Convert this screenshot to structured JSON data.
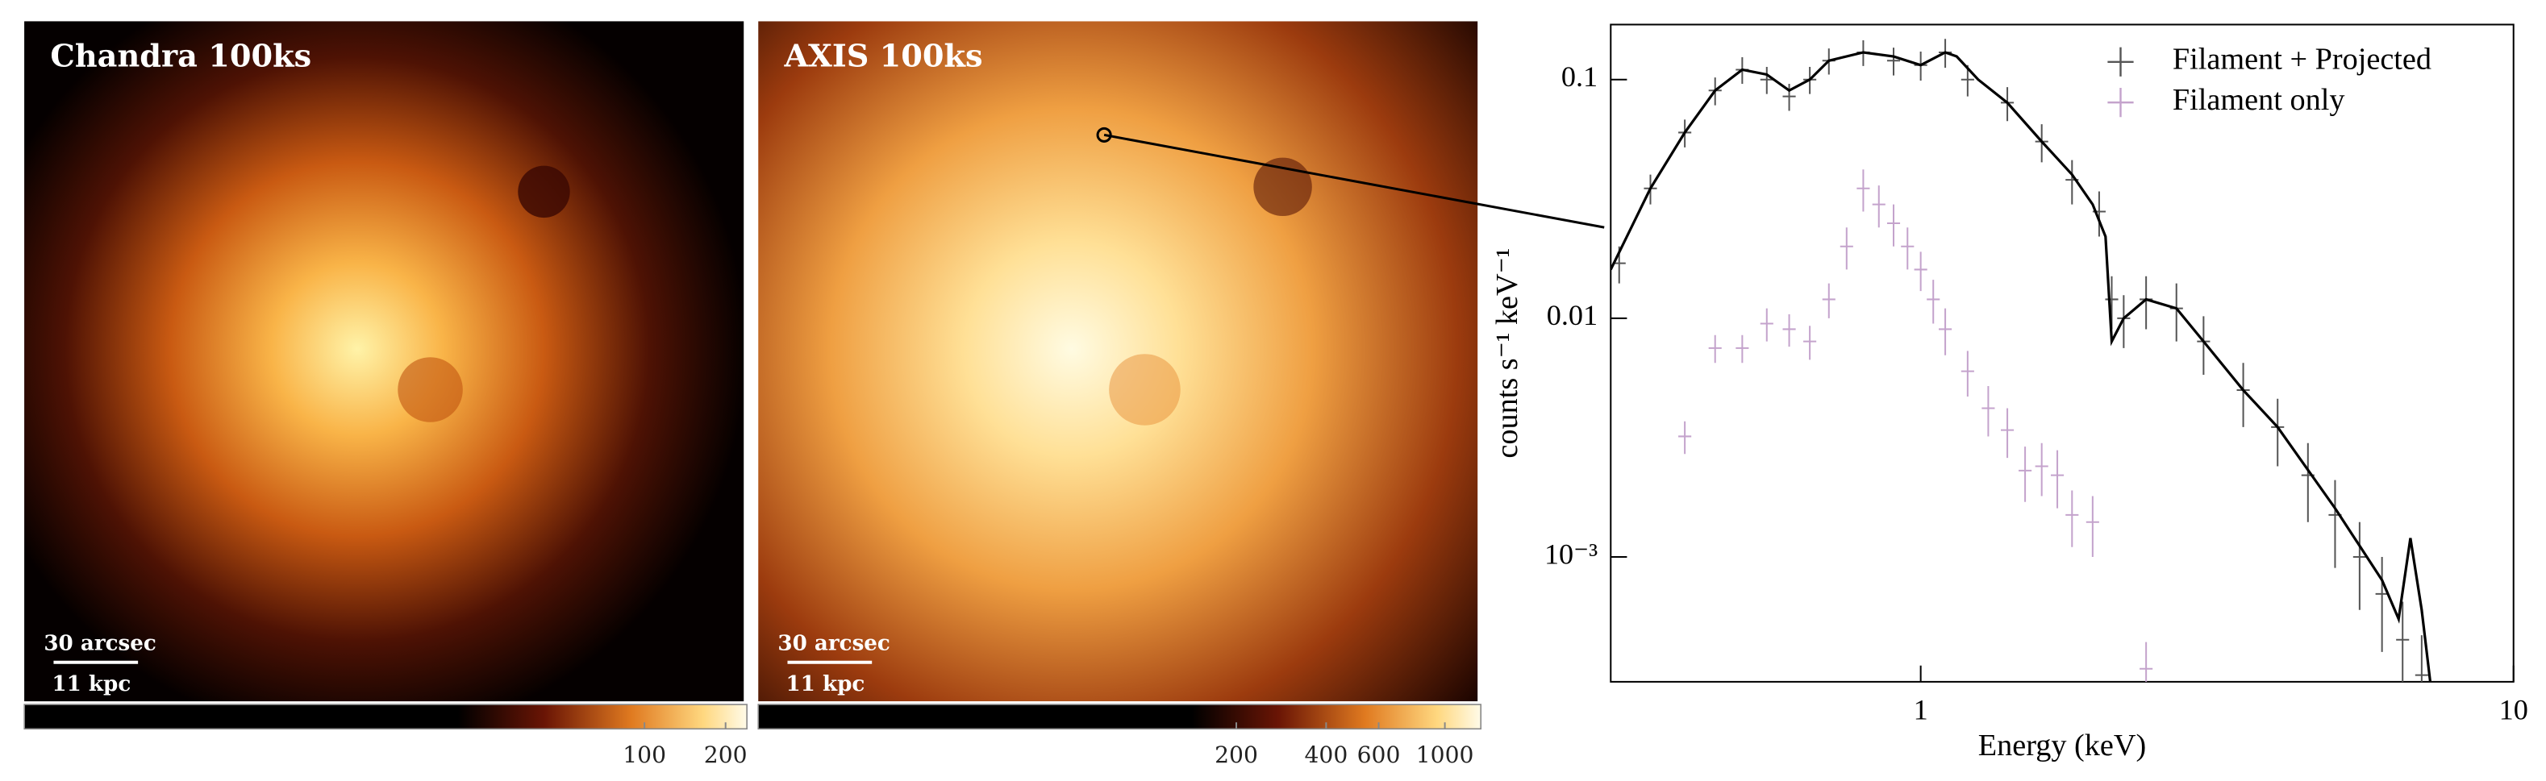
{
  "panels": [
    {
      "title": "Chandra 100ks",
      "scalebar": [
        "30 arcsec",
        "11 kpc"
      ],
      "colorbar": {
        "scale": "log",
        "lim": [
          0.5,
          240
        ],
        "ticks": [
          100,
          200
        ]
      }
    },
    {
      "title": "AXIS 100ks",
      "scalebar": [
        "30 arcsec",
        "11 kpc"
      ],
      "colorbar": {
        "scale": "log",
        "lim": [
          5,
          1320
        ],
        "ticks": [
          200,
          400,
          600,
          1000
        ]
      }
    }
  ],
  "chart_data": {
    "type": "scatter",
    "xlabel": "Energy (keV)",
    "ylabel": "counts s⁻¹ keV⁻¹",
    "xscale": "log",
    "yscale": "log",
    "xlim": [
      0.3,
      10
    ],
    "ylim": [
      0.0003,
      0.17
    ],
    "xticks": [
      1,
      10
    ],
    "yticks": [
      0.1,
      0.01,
      {
        "value": 0.001,
        "label": "10⁻³"
      }
    ],
    "legend": "upper right",
    "series": [
      {
        "name": "Filament + Projected",
        "color": "#555555",
        "x": [
          0.31,
          0.35,
          0.4,
          0.45,
          0.5,
          0.55,
          0.6,
          0.65,
          0.7,
          0.8,
          0.9,
          1.0,
          1.1,
          1.2,
          1.4,
          1.6,
          1.8,
          2.0,
          2.1,
          2.2,
          2.4,
          2.7,
          3.0,
          3.5,
          4.0,
          4.5,
          5.0,
          5.5,
          6.0,
          6.5,
          7.0
        ],
        "values": [
          0.017,
          0.035,
          0.06,
          0.09,
          0.11,
          0.1,
          0.085,
          0.1,
          0.12,
          0.13,
          0.12,
          0.115,
          0.13,
          0.1,
          0.08,
          0.055,
          0.038,
          0.028,
          0.012,
          0.01,
          0.012,
          0.011,
          0.008,
          0.005,
          0.0035,
          0.0022,
          0.0015,
          0.001,
          0.0007,
          0.00045,
          0.00032
        ],
        "yerr": [
          0.003,
          0.005,
          0.008,
          0.012,
          0.014,
          0.013,
          0.011,
          0.013,
          0.015,
          0.016,
          0.016,
          0.016,
          0.018,
          0.015,
          0.013,
          0.01,
          0.008,
          0.006,
          0.003,
          0.0025,
          0.003,
          0.003,
          0.0022,
          0.0015,
          0.0011,
          0.0008,
          0.0006,
          0.0004,
          0.0003,
          0.0002,
          0.00015
        ]
      },
      {
        "name": "Filament only",
        "color": "#c4a3cc",
        "x": [
          0.4,
          0.45,
          0.5,
          0.55,
          0.6,
          0.65,
          0.7,
          0.75,
          0.8,
          0.85,
          0.9,
          0.95,
          1.0,
          1.05,
          1.1,
          1.2,
          1.3,
          1.4,
          1.5,
          1.6,
          1.7,
          1.8,
          1.95,
          2.4
        ],
        "values": [
          0.0032,
          0.0075,
          0.0075,
          0.0095,
          0.009,
          0.008,
          0.012,
          0.02,
          0.035,
          0.03,
          0.025,
          0.02,
          0.016,
          0.012,
          0.009,
          0.006,
          0.0042,
          0.0034,
          0.0023,
          0.0024,
          0.0022,
          0.0015,
          0.0014,
          0.00034
        ],
        "yerr": [
          0.0005,
          0.001,
          0.001,
          0.0015,
          0.0014,
          0.0013,
          0.002,
          0.004,
          0.007,
          0.006,
          0.005,
          0.004,
          0.003,
          0.0025,
          0.002,
          0.0013,
          0.001,
          0.0008,
          0.0006,
          0.0006,
          0.0006,
          0.0004,
          0.0004,
          0.0001
        ]
      }
    ],
    "model": {
      "color": "#000000",
      "x": [
        0.3,
        0.35,
        0.4,
        0.45,
        0.5,
        0.55,
        0.6,
        0.65,
        0.7,
        0.8,
        0.9,
        1.0,
        1.1,
        1.15,
        1.25,
        1.4,
        1.6,
        1.8,
        1.95,
        2.05,
        2.1,
        2.2,
        2.4,
        2.7,
        3.0,
        3.5,
        4.0,
        5.0,
        6.0,
        6.4,
        6.7,
        7.0,
        7.3
      ],
      "values": [
        0.016,
        0.035,
        0.06,
        0.09,
        0.11,
        0.105,
        0.09,
        0.1,
        0.12,
        0.13,
        0.125,
        0.115,
        0.13,
        0.125,
        0.1,
        0.08,
        0.055,
        0.04,
        0.03,
        0.022,
        0.008,
        0.01,
        0.012,
        0.011,
        0.008,
        0.005,
        0.0035,
        0.0016,
        0.0008,
        0.00055,
        0.0012,
        0.0006,
        0.00025
      ]
    }
  }
}
